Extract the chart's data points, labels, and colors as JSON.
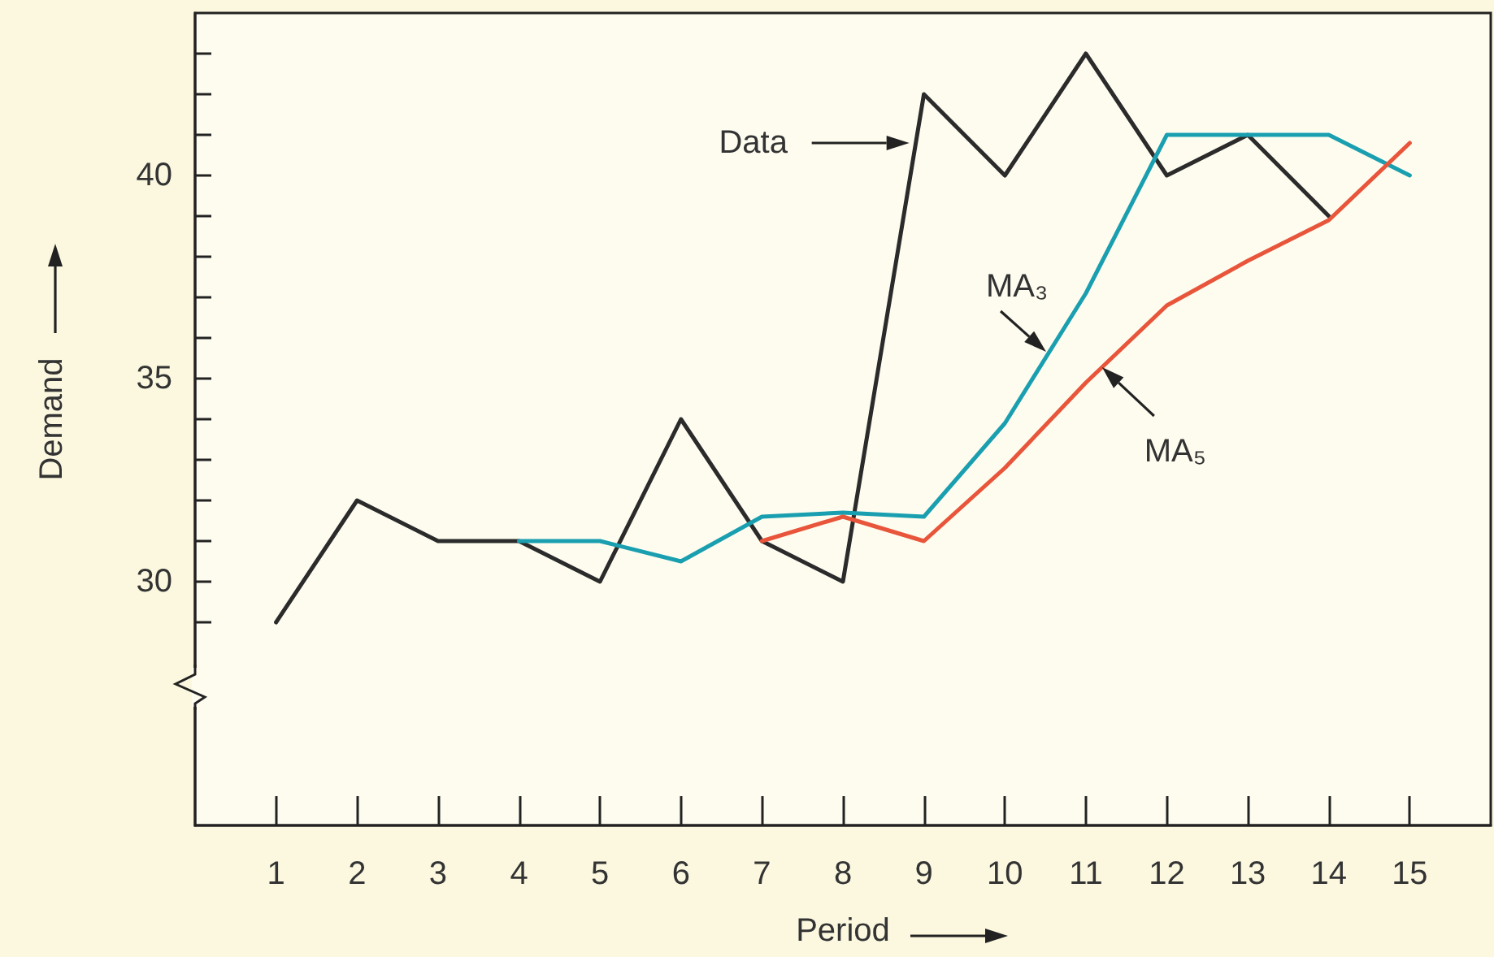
{
  "chart_data": {
    "type": "line",
    "xlabel": "Period",
    "ylabel": "Demand",
    "xlim": [
      0,
      16
    ],
    "xticks": [
      1,
      2,
      3,
      4,
      5,
      6,
      7,
      8,
      9,
      10,
      11,
      12,
      13,
      14,
      15
    ],
    "ylim": [
      24,
      44
    ],
    "yticks": [
      {
        "value": 29,
        "label": null
      },
      30,
      {
        "value": 31,
        "label": null
      },
      {
        "value": 32,
        "label": null
      },
      {
        "value": 33,
        "label": null
      },
      {
        "value": 34,
        "label": null
      },
      35,
      {
        "value": 36,
        "label": null
      },
      {
        "value": 37,
        "label": null
      },
      {
        "value": 38,
        "label": null
      },
      {
        "value": 39,
        "label": null
      },
      40,
      {
        "value": 41,
        "label": null
      },
      {
        "value": 42,
        "label": null
      },
      {
        "value": 43,
        "label": null
      }
    ],
    "grid": false,
    "marker": "none",
    "line_style": "solid",
    "series": [
      {
        "name": "Data",
        "color": "#2b2b2b",
        "x": [
          1,
          2,
          3,
          4,
          5,
          6,
          7,
          8,
          9,
          10,
          11,
          12,
          13,
          14
        ],
        "values": [
          29,
          32,
          31,
          31,
          30,
          34,
          31,
          30,
          42,
          40,
          43,
          40,
          41,
          39
        ]
      },
      {
        "name": "MA₃",
        "color": "#1a9fb0",
        "x": [
          4,
          5,
          6,
          7,
          8,
          9,
          10,
          11,
          12,
          13,
          14,
          15
        ],
        "values": [
          31,
          31,
          30.5,
          31.6,
          31.7,
          31.6,
          33.9,
          37.1,
          41,
          41,
          41,
          40
        ]
      },
      {
        "name": "MA₅",
        "color": "#e8553a",
        "x": [
          7,
          8,
          9,
          10,
          11,
          12,
          13,
          14,
          15
        ],
        "values": [
          31,
          31.6,
          31,
          32.8,
          34.9,
          36.8,
          37.9,
          38.9,
          40.8
        ]
      }
    ]
  }
}
